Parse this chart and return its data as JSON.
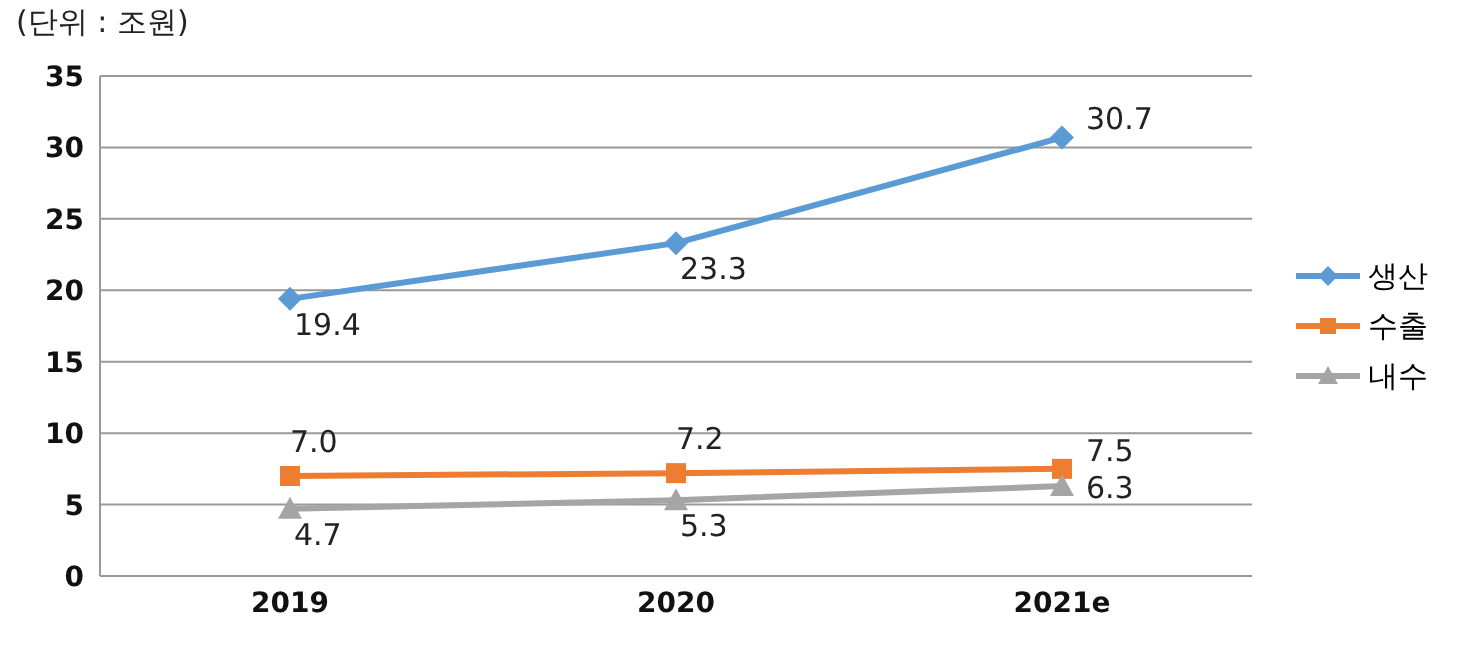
{
  "chart_data": {
    "type": "line",
    "annotations": [
      "(단위 : 조원)"
    ],
    "categories": [
      "2019",
      "2020",
      "2021e"
    ],
    "series": [
      {
        "name": "생산",
        "color": "#5b9bd5",
        "marker": "diamond",
        "values": [
          19.4,
          23.3,
          30.7
        ],
        "value_labels": [
          "19.4",
          "23.3",
          "30.7"
        ]
      },
      {
        "name": "수출",
        "color": "#ed7d31",
        "marker": "square",
        "values": [
          7.0,
          7.2,
          7.5
        ],
        "value_labels": [
          "7.0",
          "7.2",
          "7.5"
        ]
      },
      {
        "name": "내수",
        "color": "#a5a5a5",
        "marker": "triangle",
        "values": [
          4.7,
          5.3,
          6.3
        ],
        "value_labels": [
          "4.7",
          "5.3",
          "6.3"
        ]
      }
    ],
    "ylim": [
      0,
      35
    ],
    "yticks": [
      0,
      5,
      10,
      15,
      20,
      25,
      30,
      35
    ],
    "grid": "y",
    "legend": "right"
  }
}
